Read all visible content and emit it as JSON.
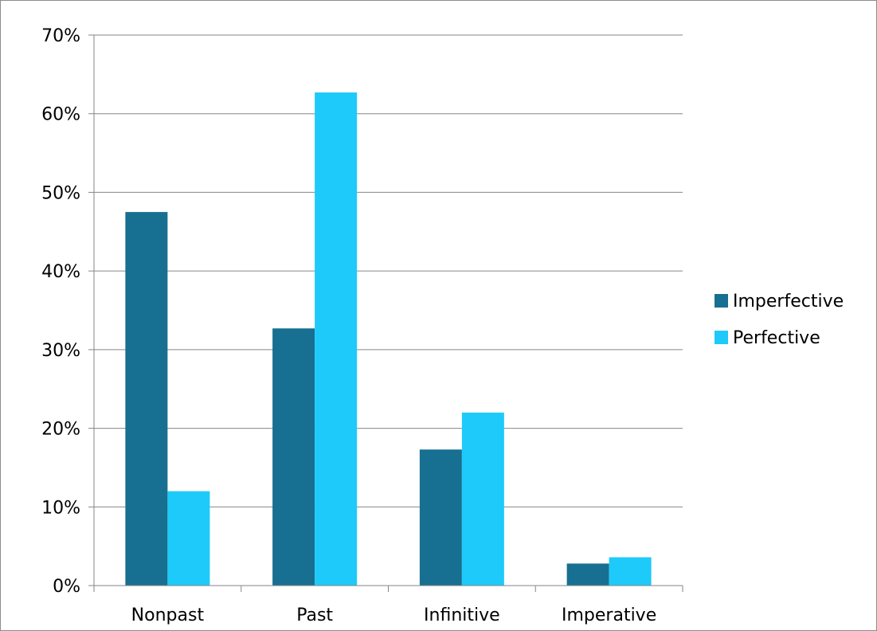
{
  "chart_data": {
    "type": "bar",
    "categories": [
      "Nonpast",
      "Past",
      "Infinitive",
      "Imperative"
    ],
    "series": [
      {
        "name": "Imperfective",
        "color": "#176f91",
        "values": [
          47.5,
          32.7,
          17.3,
          2.8
        ]
      },
      {
        "name": "Perfective",
        "color": "#1ecafa",
        "values": [
          12.0,
          62.7,
          22.0,
          3.6
        ]
      }
    ],
    "title": "",
    "xlabel": "",
    "ylabel": "",
    "ylim": [
      0,
      70
    ],
    "y_ticks": [
      "0%",
      "10%",
      "20%",
      "30%",
      "40%",
      "50%",
      "60%",
      "70%"
    ],
    "y_tick_values": [
      0,
      10,
      20,
      30,
      40,
      50,
      60,
      70
    ],
    "gridlines": true,
    "legend_position": "right",
    "axis_color": "#868686",
    "grid_color": "#868686"
  }
}
